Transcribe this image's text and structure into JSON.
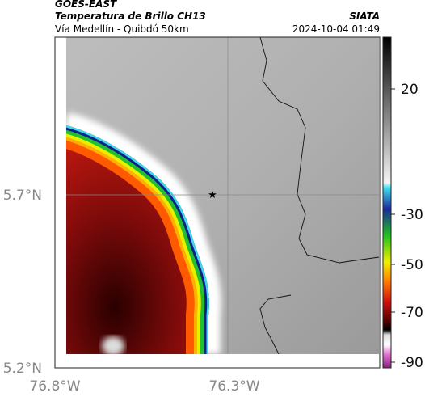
{
  "header": {
    "source": "GOES-EAST",
    "title": "Temperatura de Brillo CH13",
    "subtitle": "Vía Medellín - Quibdó 50km",
    "agency": "SIATA",
    "timestamp": "2024-10-04 01:49"
  },
  "map": {
    "lat_labels": [
      "5.7°N",
      "5.2°N"
    ],
    "lon_labels": [
      "76.8°W",
      "76.3°W"
    ]
  },
  "colorbar": {
    "tick_labels": [
      "20",
      "-30",
      "-50",
      "-70",
      "-90"
    ]
  }
}
